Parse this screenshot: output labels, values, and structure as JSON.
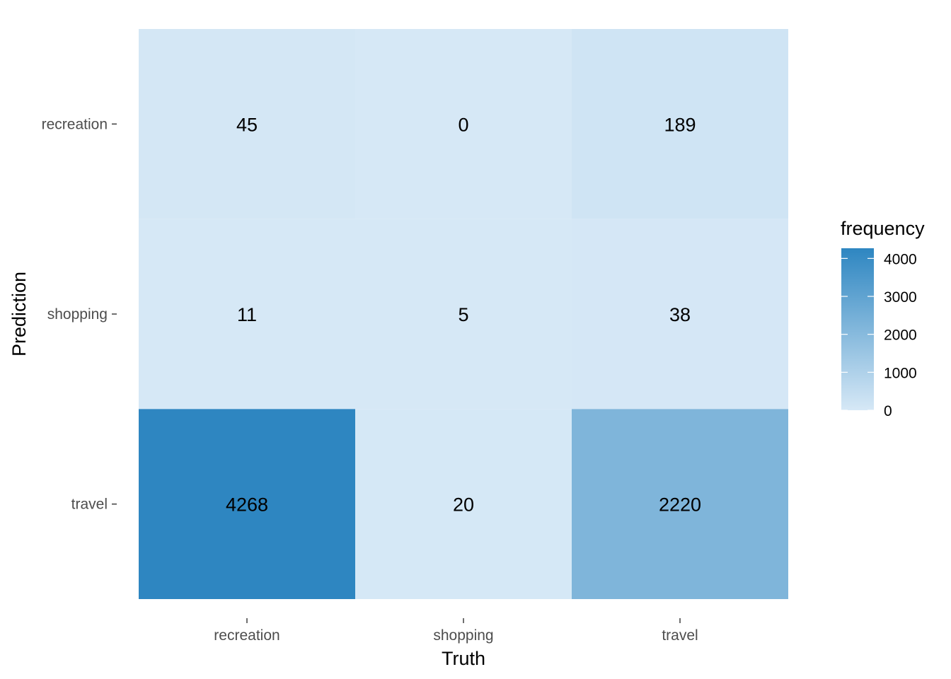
{
  "chart_data": {
    "type": "heatmap",
    "x_categories": [
      "recreation",
      "shopping",
      "travel"
    ],
    "y_categories": [
      "recreation",
      "shopping",
      "travel"
    ],
    "xlabel": "Truth",
    "ylabel": "Prediction",
    "cells": [
      {
        "x": "recreation",
        "y": "recreation",
        "value": 45
      },
      {
        "x": "shopping",
        "y": "recreation",
        "value": 0
      },
      {
        "x": "travel",
        "y": "recreation",
        "value": 189
      },
      {
        "x": "recreation",
        "y": "shopping",
        "value": 11
      },
      {
        "x": "shopping",
        "y": "shopping",
        "value": 5
      },
      {
        "x": "travel",
        "y": "shopping",
        "value": 38
      },
      {
        "x": "recreation",
        "y": "travel",
        "value": 4268
      },
      {
        "x": "shopping",
        "y": "travel",
        "value": 20
      },
      {
        "x": "travel",
        "y": "travel",
        "value": 2220
      }
    ],
    "legend": {
      "title": "frequency",
      "ticks": [
        0,
        1000,
        2000,
        3000,
        4000
      ],
      "range": [
        0,
        4268
      ],
      "placement": "right"
    },
    "colors": {
      "low": "#d6e8f6",
      "high": "#2e86c1"
    },
    "grid": false
  }
}
